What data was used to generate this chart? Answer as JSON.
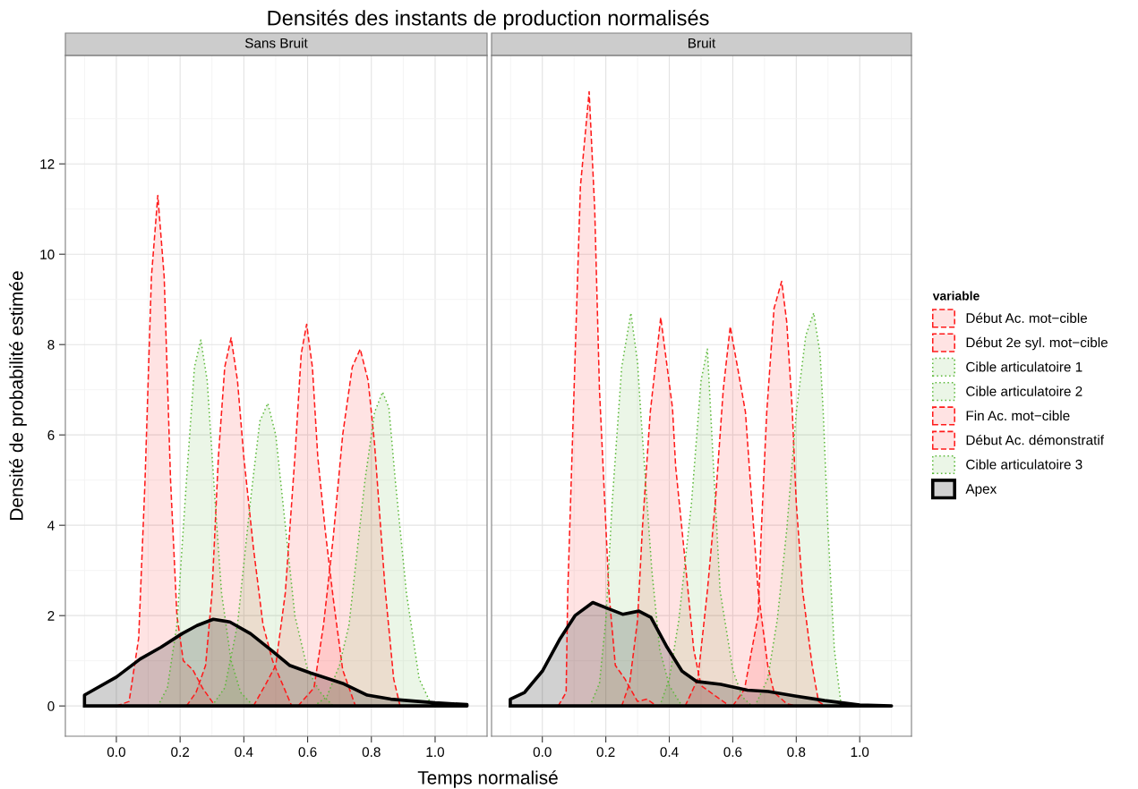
{
  "chart_data": [
    {
      "type": "area",
      "title": "Densités des instants de production normalisés",
      "subtitle": "Sans Bruit",
      "xlabel": "Temps normalisé",
      "ylabel": "Densité de probabilité estimée",
      "xlim": [
        -0.16,
        1.163
      ],
      "ylim": [
        -0.67,
        14.4
      ],
      "xticks": [
        {
          "value": 0,
          "label": "0.0"
        },
        {
          "value": 0.2,
          "label": "0.2"
        },
        {
          "value": 0.4,
          "label": "0.4"
        },
        {
          "value": 0.6,
          "label": "0.6"
        },
        {
          "value": 0.8,
          "label": "0.8"
        },
        {
          "value": 1,
          "label": "1.0"
        }
      ],
      "yticks": [
        0,
        2,
        4,
        6,
        8,
        10,
        12
      ],
      "grid": true,
      "legend": "right",
      "legend_title": "variable",
      "marker": "none",
      "series": [
        {
          "name": "Début Ac. mot−cible",
          "color": "#ff1a1a",
          "line_style": "dashed",
          "x": [
            0.0,
            0.04,
            0.07,
            0.09,
            0.11,
            0.13,
            0.15,
            0.17,
            0.19,
            0.21,
            0.24,
            0.27,
            0.31
          ],
          "values": [
            0,
            0.1,
            1.5,
            5,
            9.5,
            11.3,
            9.5,
            5,
            2,
            1.0,
            0.8,
            0.4,
            0
          ]
        },
        {
          "name": "Début 2e syl. mot−cible",
          "color": "#ff1a1a",
          "line_style": "dashed",
          "x": [
            0.22,
            0.25,
            0.28,
            0.3,
            0.32,
            0.34,
            0.36,
            0.38,
            0.4,
            0.43,
            0.46,
            0.49,
            0.52,
            0.55
          ],
          "values": [
            0,
            0.3,
            0.9,
            2.5,
            5.5,
            7.5,
            8.15,
            7.2,
            5.5,
            3.5,
            1.8,
            1.0,
            0.5,
            0
          ]
        },
        {
          "name": "Cible articulatoire 1",
          "color": "#5cb83a",
          "line_style": "dotted",
          "x": [
            0.13,
            0.16,
            0.19,
            0.22,
            0.245,
            0.265,
            0.285,
            0.31,
            0.33,
            0.36,
            0.39,
            0.43
          ],
          "values": [
            0,
            0.4,
            1.8,
            5,
            7.5,
            8.1,
            7.2,
            4.5,
            2.5,
            1.0,
            0.3,
            0
          ]
        },
        {
          "name": "Cible articulatoire 2",
          "color": "#5cb83a",
          "line_style": "dotted",
          "x": [
            0.3,
            0.34,
            0.38,
            0.42,
            0.45,
            0.475,
            0.5,
            0.53,
            0.56,
            0.6,
            0.64,
            0.68
          ],
          "values": [
            0,
            0.4,
            1.8,
            4.5,
            6.3,
            6.7,
            6.0,
            4.0,
            2.0,
            0.8,
            0.3,
            0
          ]
        },
        {
          "name": "Fin Ac. mot−cible",
          "color": "#ff1a1a",
          "line_style": "dashed",
          "x": [
            0.43,
            0.47,
            0.5,
            0.53,
            0.56,
            0.58,
            0.597,
            0.615,
            0.632,
            0.655,
            0.68,
            0.71,
            0.75
          ],
          "values": [
            0,
            0.5,
            0.9,
            2.5,
            5.5,
            7.8,
            8.45,
            7.5,
            5.5,
            3.9,
            2.4,
            0.8,
            0
          ]
        },
        {
          "name": "Début Ac. démonstratif",
          "color": "#ff1a1a",
          "line_style": "dashed",
          "x": [
            0.57,
            0.62,
            0.65,
            0.68,
            0.71,
            0.74,
            0.765,
            0.79,
            0.81,
            0.843,
            0.87,
            0.89
          ],
          "values": [
            0,
            0.4,
            1.8,
            3.7,
            6.0,
            7.5,
            7.9,
            7.2,
            5.8,
            2.6,
            0.6,
            0
          ]
        },
        {
          "name": "Cible articulatoire 3",
          "color": "#5cb83a",
          "line_style": "dotted",
          "x": [
            0.62,
            0.66,
            0.7,
            0.73,
            0.78,
            0.81,
            0.835,
            0.855,
            0.875,
            0.91,
            0.95,
            0.99
          ],
          "values": [
            0,
            0.2,
            0.9,
            1.8,
            5.0,
            6.5,
            6.95,
            6.6,
            5.0,
            2.5,
            0.6,
            0
          ]
        },
        {
          "name": "Apex",
          "color": "#000000",
          "line_style": "solid",
          "x": [
            -0.1,
            0.0,
            0.075,
            0.14,
            0.206,
            0.253,
            0.304,
            0.356,
            0.421,
            0.487,
            0.543,
            0.609,
            0.71,
            0.787,
            0.861,
            1.0,
            1.1
          ],
          "values": [
            0.24,
            0.64,
            1.04,
            1.3,
            1.6,
            1.78,
            1.92,
            1.86,
            1.6,
            1.23,
            0.9,
            0.73,
            0.5,
            0.24,
            0.15,
            0.07,
            0.03
          ]
        }
      ]
    },
    {
      "type": "area",
      "subtitle": "Bruit",
      "xlim": [
        -0.16,
        1.163
      ],
      "ylim": [
        -0.67,
        14.4
      ],
      "xticks": [
        {
          "value": 0,
          "label": "0.0"
        },
        {
          "value": 0.2,
          "label": "0.2"
        },
        {
          "value": 0.4,
          "label": "0.4"
        },
        {
          "value": 0.6,
          "label": "0.6"
        },
        {
          "value": 0.8,
          "label": "0.8"
        },
        {
          "value": 1,
          "label": "1.0"
        }
      ],
      "yticks": [
        {
          "value": 0,
          "label": null
        },
        {
          "value": 2,
          "label": null
        },
        {
          "value": 4,
          "label": null
        },
        {
          "value": 6,
          "label": null
        },
        {
          "value": 8,
          "label": null
        },
        {
          "value": 10,
          "label": null
        },
        {
          "value": 12,
          "label": null
        }
      ],
      "tick_labels": "x",
      "grid": true,
      "marker": "none",
      "series": [
        {
          "color": "#ff1a1a",
          "line_style": "dashed",
          "x": [
            0.05,
            0.075,
            0.08,
            0.1,
            0.12,
            0.1475,
            0.165,
            0.18,
            0.21,
            0.23,
            0.26,
            0.3,
            0.33,
            0.36
          ],
          "values": [
            0,
            0.3,
            2.5,
            7.0,
            11.5,
            13.6,
            11.0,
            7.0,
            2.5,
            0.9,
            0.6,
            0.1,
            0.15,
            0
          ]
        },
        {
          "color": "#ff1a1a",
          "line_style": "dashed",
          "x": [
            0.25,
            0.275,
            0.3,
            0.315,
            0.34,
            0.373,
            0.41,
            0.42,
            0.45,
            0.477,
            0.5,
            0.55,
            0.59
          ],
          "values": [
            0,
            0.5,
            1.9,
            3.9,
            6.5,
            8.6,
            6.6,
            5.3,
            3.2,
            1.25,
            0.45,
            0.2,
            0
          ]
        },
        {
          "color": "#5cb83a",
          "line_style": "dotted",
          "x": [
            0.15,
            0.18,
            0.2,
            0.22,
            0.25,
            0.279,
            0.3,
            0.31,
            0.345,
            0.37,
            0.4,
            0.44
          ],
          "values": [
            0,
            0.5,
            1.9,
            4.5,
            7.5,
            8.7,
            7.6,
            6.5,
            3.0,
            1.25,
            0.45,
            0
          ]
        },
        {
          "color": "#5cb83a",
          "line_style": "dotted",
          "x": [
            0.37,
            0.4,
            0.43,
            0.47,
            0.5,
            0.52,
            0.54,
            0.56,
            0.6,
            0.63,
            0.66
          ],
          "values": [
            0,
            0.6,
            1.9,
            4.5,
            7.2,
            7.9,
            5.2,
            2.55,
            0.8,
            0.2,
            0
          ]
        },
        {
          "color": "#ff1a1a",
          "line_style": "dashed",
          "x": [
            0.45,
            0.49,
            0.52,
            0.545,
            0.57,
            0.592,
            0.615,
            0.64,
            0.66,
            0.68,
            0.71,
            0.73,
            0.77,
            0.8
          ],
          "values": [
            0,
            0.6,
            2.55,
            4.5,
            7.0,
            8.4,
            7.5,
            6.5,
            4.5,
            2.55,
            0.9,
            0.3,
            0.05,
            0
          ]
        },
        {
          "color": "#ff1a1a",
          "line_style": "dashed",
          "x": [
            0.6,
            0.637,
            0.66,
            0.68,
            0.69,
            0.707,
            0.73,
            0.754,
            0.77,
            0.787,
            0.8,
            0.82,
            0.85,
            0.87,
            0.89
          ],
          "values": [
            0,
            0.37,
            1.25,
            2.0,
            3.9,
            6.5,
            8.8,
            9.4,
            8.5,
            6.6,
            4.5,
            2.55,
            0.9,
            0.1,
            0
          ]
        },
        {
          "color": "#5cb83a",
          "line_style": "dotted",
          "x": [
            0.67,
            0.71,
            0.74,
            0.77,
            0.8,
            0.83,
            0.855,
            0.875,
            0.885,
            0.9,
            0.92,
            0.94,
            0.96
          ],
          "values": [
            0,
            0.6,
            1.9,
            3.9,
            6.5,
            8.2,
            8.7,
            7.8,
            6.5,
            3.9,
            1.25,
            0.1,
            0
          ]
        },
        {
          "color": "#000000",
          "line_style": "solid",
          "x": [
            -0.101,
            -0.056,
            0.0,
            0.056,
            0.103,
            0.159,
            0.206,
            0.253,
            0.304,
            0.342,
            0.393,
            0.44,
            0.487,
            0.562,
            0.646,
            0.712,
            0.796,
            0.889,
            1.0,
            1.1
          ],
          "values": [
            0.15,
            0.3,
            0.77,
            1.49,
            2.0,
            2.29,
            2.16,
            2.03,
            2.1,
            1.96,
            1.3,
            0.77,
            0.54,
            0.48,
            0.35,
            0.32,
            0.22,
            0.12,
            0.02,
            0.0
          ]
        }
      ]
    }
  ]
}
